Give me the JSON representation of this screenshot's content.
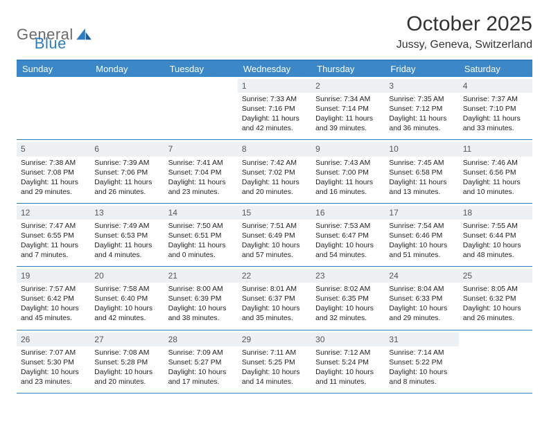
{
  "brand": {
    "part1": "General",
    "part2": "Blue"
  },
  "title": "October 2025",
  "location": "Jussy, Geneva, Switzerland",
  "colors": {
    "accent": "#2f7bbf",
    "header_bg": "#3b87c8",
    "day_header_bg": "#eef1f3",
    "text": "#333333",
    "logo_gray": "#6a6a6a"
  },
  "dow": [
    "Sunday",
    "Monday",
    "Tuesday",
    "Wednesday",
    "Thursday",
    "Friday",
    "Saturday"
  ],
  "weeks": [
    [
      {
        "n": "",
        "empty": true
      },
      {
        "n": "",
        "empty": true
      },
      {
        "n": "",
        "empty": true
      },
      {
        "n": "1",
        "sunrise": "Sunrise: 7:33 AM",
        "sunset": "Sunset: 7:16 PM",
        "day1": "Daylight: 11 hours",
        "day2": "and 42 minutes."
      },
      {
        "n": "2",
        "sunrise": "Sunrise: 7:34 AM",
        "sunset": "Sunset: 7:14 PM",
        "day1": "Daylight: 11 hours",
        "day2": "and 39 minutes."
      },
      {
        "n": "3",
        "sunrise": "Sunrise: 7:35 AM",
        "sunset": "Sunset: 7:12 PM",
        "day1": "Daylight: 11 hours",
        "day2": "and 36 minutes."
      },
      {
        "n": "4",
        "sunrise": "Sunrise: 7:37 AM",
        "sunset": "Sunset: 7:10 PM",
        "day1": "Daylight: 11 hours",
        "day2": "and 33 minutes."
      }
    ],
    [
      {
        "n": "5",
        "sunrise": "Sunrise: 7:38 AM",
        "sunset": "Sunset: 7:08 PM",
        "day1": "Daylight: 11 hours",
        "day2": "and 29 minutes."
      },
      {
        "n": "6",
        "sunrise": "Sunrise: 7:39 AM",
        "sunset": "Sunset: 7:06 PM",
        "day1": "Daylight: 11 hours",
        "day2": "and 26 minutes."
      },
      {
        "n": "7",
        "sunrise": "Sunrise: 7:41 AM",
        "sunset": "Sunset: 7:04 PM",
        "day1": "Daylight: 11 hours",
        "day2": "and 23 minutes."
      },
      {
        "n": "8",
        "sunrise": "Sunrise: 7:42 AM",
        "sunset": "Sunset: 7:02 PM",
        "day1": "Daylight: 11 hours",
        "day2": "and 20 minutes."
      },
      {
        "n": "9",
        "sunrise": "Sunrise: 7:43 AM",
        "sunset": "Sunset: 7:00 PM",
        "day1": "Daylight: 11 hours",
        "day2": "and 16 minutes."
      },
      {
        "n": "10",
        "sunrise": "Sunrise: 7:45 AM",
        "sunset": "Sunset: 6:58 PM",
        "day1": "Daylight: 11 hours",
        "day2": "and 13 minutes."
      },
      {
        "n": "11",
        "sunrise": "Sunrise: 7:46 AM",
        "sunset": "Sunset: 6:56 PM",
        "day1": "Daylight: 11 hours",
        "day2": "and 10 minutes."
      }
    ],
    [
      {
        "n": "12",
        "sunrise": "Sunrise: 7:47 AM",
        "sunset": "Sunset: 6:55 PM",
        "day1": "Daylight: 11 hours",
        "day2": "and 7 minutes."
      },
      {
        "n": "13",
        "sunrise": "Sunrise: 7:49 AM",
        "sunset": "Sunset: 6:53 PM",
        "day1": "Daylight: 11 hours",
        "day2": "and 4 minutes."
      },
      {
        "n": "14",
        "sunrise": "Sunrise: 7:50 AM",
        "sunset": "Sunset: 6:51 PM",
        "day1": "Daylight: 11 hours",
        "day2": "and 0 minutes."
      },
      {
        "n": "15",
        "sunrise": "Sunrise: 7:51 AM",
        "sunset": "Sunset: 6:49 PM",
        "day1": "Daylight: 10 hours",
        "day2": "and 57 minutes."
      },
      {
        "n": "16",
        "sunrise": "Sunrise: 7:53 AM",
        "sunset": "Sunset: 6:47 PM",
        "day1": "Daylight: 10 hours",
        "day2": "and 54 minutes."
      },
      {
        "n": "17",
        "sunrise": "Sunrise: 7:54 AM",
        "sunset": "Sunset: 6:46 PM",
        "day1": "Daylight: 10 hours",
        "day2": "and 51 minutes."
      },
      {
        "n": "18",
        "sunrise": "Sunrise: 7:55 AM",
        "sunset": "Sunset: 6:44 PM",
        "day1": "Daylight: 10 hours",
        "day2": "and 48 minutes."
      }
    ],
    [
      {
        "n": "19",
        "sunrise": "Sunrise: 7:57 AM",
        "sunset": "Sunset: 6:42 PM",
        "day1": "Daylight: 10 hours",
        "day2": "and 45 minutes."
      },
      {
        "n": "20",
        "sunrise": "Sunrise: 7:58 AM",
        "sunset": "Sunset: 6:40 PM",
        "day1": "Daylight: 10 hours",
        "day2": "and 42 minutes."
      },
      {
        "n": "21",
        "sunrise": "Sunrise: 8:00 AM",
        "sunset": "Sunset: 6:39 PM",
        "day1": "Daylight: 10 hours",
        "day2": "and 38 minutes."
      },
      {
        "n": "22",
        "sunrise": "Sunrise: 8:01 AM",
        "sunset": "Sunset: 6:37 PM",
        "day1": "Daylight: 10 hours",
        "day2": "and 35 minutes."
      },
      {
        "n": "23",
        "sunrise": "Sunrise: 8:02 AM",
        "sunset": "Sunset: 6:35 PM",
        "day1": "Daylight: 10 hours",
        "day2": "and 32 minutes."
      },
      {
        "n": "24",
        "sunrise": "Sunrise: 8:04 AM",
        "sunset": "Sunset: 6:33 PM",
        "day1": "Daylight: 10 hours",
        "day2": "and 29 minutes."
      },
      {
        "n": "25",
        "sunrise": "Sunrise: 8:05 AM",
        "sunset": "Sunset: 6:32 PM",
        "day1": "Daylight: 10 hours",
        "day2": "and 26 minutes."
      }
    ],
    [
      {
        "n": "26",
        "sunrise": "Sunrise: 7:07 AM",
        "sunset": "Sunset: 5:30 PM",
        "day1": "Daylight: 10 hours",
        "day2": "and 23 minutes."
      },
      {
        "n": "27",
        "sunrise": "Sunrise: 7:08 AM",
        "sunset": "Sunset: 5:28 PM",
        "day1": "Daylight: 10 hours",
        "day2": "and 20 minutes."
      },
      {
        "n": "28",
        "sunrise": "Sunrise: 7:09 AM",
        "sunset": "Sunset: 5:27 PM",
        "day1": "Daylight: 10 hours",
        "day2": "and 17 minutes."
      },
      {
        "n": "29",
        "sunrise": "Sunrise: 7:11 AM",
        "sunset": "Sunset: 5:25 PM",
        "day1": "Daylight: 10 hours",
        "day2": "and 14 minutes."
      },
      {
        "n": "30",
        "sunrise": "Sunrise: 7:12 AM",
        "sunset": "Sunset: 5:24 PM",
        "day1": "Daylight: 10 hours",
        "day2": "and 11 minutes."
      },
      {
        "n": "31",
        "sunrise": "Sunrise: 7:14 AM",
        "sunset": "Sunset: 5:22 PM",
        "day1": "Daylight: 10 hours",
        "day2": "and 8 minutes."
      },
      {
        "n": "",
        "empty": true
      }
    ]
  ]
}
